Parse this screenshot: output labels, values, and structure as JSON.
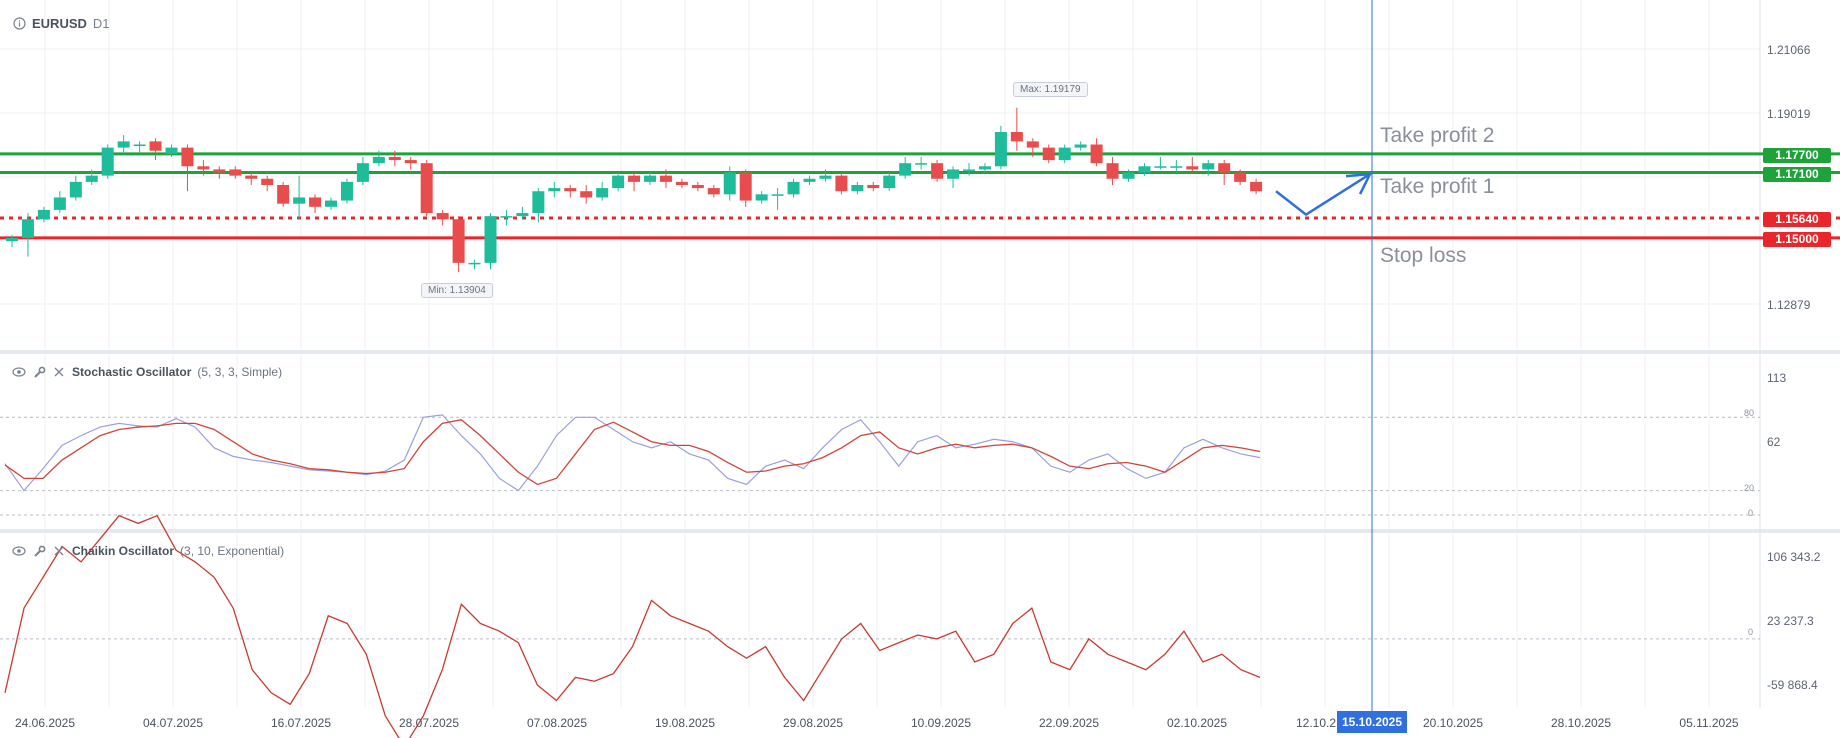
{
  "header": {
    "symbol": "EURUSD",
    "timeframe": "D1"
  },
  "price_axis": [
    "1.21066",
    "1.19019",
    "1.12879"
  ],
  "level_labels": [
    {
      "text": "1.17700",
      "color": "#1fa23a"
    },
    {
      "text": "1.17100",
      "color": "#1fa23a"
    },
    {
      "text": "1.15640",
      "color": "#e8262b"
    },
    {
      "text": "1.15000",
      "color": "#e8262b"
    }
  ],
  "annotations": {
    "tp2": "Take profit 2",
    "tp1": "Take profit 1",
    "sl": "Stop loss"
  },
  "markers": {
    "max": "Max: 1.19179",
    "min": "Min: 1.13904"
  },
  "stochastic": {
    "name": "Stochastic Oscillator",
    "params": "(5, 3, 3, Simple)",
    "axis": [
      "113",
      "62"
    ],
    "levels": [
      "80",
      "20",
      "0"
    ]
  },
  "chaikin": {
    "name": "Chaikin Oscillator",
    "params": "(3, 10, Exponential)",
    "axis": [
      "106 343.2",
      "23 237.3",
      "-59 868.4"
    ],
    "zero": "0"
  },
  "time_axis": [
    "24.06.2025",
    "04.07.2025",
    "16.07.2025",
    "28.07.2025",
    "07.08.2025",
    "19.08.2025",
    "29.08.2025",
    "10.09.2025",
    "22.09.2025",
    "02.10.2025",
    "12.10.2",
    "20.10.2025",
    "28.10.2025",
    "05.11.2025"
  ],
  "current_date": "15.10.2025",
  "colors": {
    "up": "#1ebc9a",
    "down": "#e84c4c",
    "tp": "#1fa23a",
    "sl": "#e8262b",
    "cursor": "#2f6fe0"
  },
  "chart_data": {
    "type": "candlestick",
    "symbol": "EURUSD",
    "timeframe": "D1",
    "levels": {
      "take_profit_2": 1.177,
      "take_profit_1": 1.171,
      "entry": 1.1564,
      "stop_loss": 1.15
    },
    "max": 1.19179,
    "min": 1.13904,
    "candles": [
      [
        1.149,
        1.15,
        1.147,
        1.151
      ],
      [
        1.15,
        1.156,
        1.144,
        1.158
      ],
      [
        1.156,
        1.159,
        1.155,
        1.16
      ],
      [
        1.159,
        1.163,
        1.158,
        1.165
      ],
      [
        1.163,
        1.168,
        1.162,
        1.17
      ],
      [
        1.168,
        1.17,
        1.167,
        1.172
      ],
      [
        1.17,
        1.179,
        1.169,
        1.18
      ],
      [
        1.179,
        1.181,
        1.177,
        1.183
      ],
      [
        1.18,
        1.18,
        1.177,
        1.181
      ],
      [
        1.181,
        1.178,
        1.175,
        1.182
      ],
      [
        1.177,
        1.179,
        1.176,
        1.18
      ],
      [
        1.179,
        1.173,
        1.165,
        1.18
      ],
      [
        1.173,
        1.172,
        1.17,
        1.175
      ],
      [
        1.172,
        1.171,
        1.169,
        1.173
      ],
      [
        1.172,
        1.17,
        1.169,
        1.173
      ],
      [
        1.17,
        1.169,
        1.167,
        1.171
      ],
      [
        1.169,
        1.167,
        1.165,
        1.17
      ],
      [
        1.167,
        1.161,
        1.16,
        1.168
      ],
      [
        1.161,
        1.163,
        1.156,
        1.17
      ],
      [
        1.163,
        1.16,
        1.158,
        1.164
      ],
      [
        1.16,
        1.162,
        1.159,
        1.163
      ],
      [
        1.162,
        1.168,
        1.161,
        1.169
      ],
      [
        1.168,
        1.174,
        1.167,
        1.176
      ],
      [
        1.174,
        1.176,
        1.173,
        1.178
      ],
      [
        1.176,
        1.175,
        1.173,
        1.178
      ],
      [
        1.175,
        1.174,
        1.172,
        1.176
      ],
      [
        1.174,
        1.158,
        1.157,
        1.175
      ],
      [
        1.158,
        1.156,
        1.154,
        1.159
      ],
      [
        1.156,
        1.142,
        1.139,
        1.157
      ],
      [
        1.142,
        1.142,
        1.14,
        1.143
      ],
      [
        1.142,
        1.157,
        1.14,
        1.158
      ],
      [
        1.157,
        1.157,
        1.154,
        1.159
      ],
      [
        1.157,
        1.158,
        1.156,
        1.16
      ],
      [
        1.158,
        1.165,
        1.155,
        1.166
      ],
      [
        1.165,
        1.166,
        1.163,
        1.168
      ],
      [
        1.166,
        1.165,
        1.163,
        1.167
      ],
      [
        1.165,
        1.163,
        1.161,
        1.167
      ],
      [
        1.163,
        1.166,
        1.162,
        1.168
      ],
      [
        1.166,
        1.17,
        1.165,
        1.171
      ],
      [
        1.17,
        1.168,
        1.165,
        1.171
      ],
      [
        1.168,
        1.17,
        1.167,
        1.171
      ],
      [
        1.17,
        1.168,
        1.166,
        1.172
      ],
      [
        1.168,
        1.167,
        1.166,
        1.169
      ],
      [
        1.167,
        1.166,
        1.165,
        1.168
      ],
      [
        1.166,
        1.164,
        1.163,
        1.167
      ],
      [
        1.164,
        1.171,
        1.162,
        1.173
      ],
      [
        1.171,
        1.162,
        1.16,
        1.172
      ],
      [
        1.162,
        1.164,
        1.161,
        1.165
      ],
      [
        1.164,
        1.164,
        1.159,
        1.166
      ],
      [
        1.164,
        1.168,
        1.163,
        1.169
      ],
      [
        1.168,
        1.169,
        1.167,
        1.17
      ],
      [
        1.169,
        1.17,
        1.168,
        1.172
      ],
      [
        1.17,
        1.165,
        1.164,
        1.171
      ],
      [
        1.165,
        1.167,
        1.164,
        1.168
      ],
      [
        1.167,
        1.166,
        1.165,
        1.168
      ],
      [
        1.166,
        1.17,
        1.165,
        1.171
      ],
      [
        1.17,
        1.174,
        1.169,
        1.176
      ],
      [
        1.174,
        1.174,
        1.172,
        1.176
      ],
      [
        1.174,
        1.169,
        1.168,
        1.175
      ],
      [
        1.169,
        1.172,
        1.166,
        1.173
      ],
      [
        1.172,
        1.172,
        1.17,
        1.174
      ],
      [
        1.172,
        1.173,
        1.171,
        1.174
      ],
      [
        1.173,
        1.184,
        1.172,
        1.186
      ],
      [
        1.184,
        1.181,
        1.178,
        1.1918
      ],
      [
        1.181,
        1.179,
        1.176,
        1.182
      ],
      [
        1.179,
        1.175,
        1.174,
        1.18
      ],
      [
        1.175,
        1.179,
        1.174,
        1.18
      ],
      [
        1.179,
        1.18,
        1.178,
        1.181
      ],
      [
        1.18,
        1.174,
        1.173,
        1.182
      ],
      [
        1.174,
        1.169,
        1.167,
        1.176
      ],
      [
        1.169,
        1.171,
        1.168,
        1.172
      ],
      [
        1.171,
        1.173,
        1.17,
        1.174
      ],
      [
        1.173,
        1.173,
        1.172,
        1.176
      ],
      [
        1.173,
        1.173,
        1.171,
        1.175
      ],
      [
        1.173,
        1.172,
        1.171,
        1.176
      ],
      [
        1.172,
        1.174,
        1.17,
        1.175
      ],
      [
        1.174,
        1.171,
        1.167,
        1.175
      ],
      [
        1.171,
        1.168,
        1.167,
        1.172
      ],
      [
        1.168,
        1.165,
        1.164,
        1.169
      ]
    ],
    "projection": [
      1.165,
      1.1575,
      1.1705
    ],
    "stochastic_k": [
      42,
      20,
      38,
      57,
      65,
      72,
      75,
      73,
      72,
      79,
      72,
      55,
      48,
      45,
      43,
      40,
      37,
      36,
      35,
      33,
      36,
      45,
      80,
      82,
      65,
      50,
      30,
      20,
      40,
      65,
      80,
      80,
      70,
      60,
      55,
      60,
      50,
      45,
      30,
      25,
      40,
      45,
      38,
      55,
      70,
      78,
      60,
      40,
      60,
      65,
      55,
      58,
      62,
      60,
      55,
      40,
      35,
      45,
      50,
      38,
      30,
      35,
      55,
      62,
      55,
      50,
      47
    ],
    "stochastic_d": [
      41,
      30,
      30,
      45,
      55,
      65,
      70,
      72,
      73,
      75,
      75,
      70,
      60,
      50,
      45,
      42,
      38,
      37,
      35,
      34,
      35,
      38,
      60,
      75,
      78,
      65,
      50,
      35,
      25,
      30,
      50,
      70,
      76,
      68,
      60,
      57,
      57,
      52,
      43,
      35,
      36,
      40,
      42,
      47,
      55,
      65,
      68,
      55,
      50,
      55,
      58,
      55,
      57,
      58,
      55,
      48,
      40,
      38,
      42,
      43,
      40,
      35,
      45,
      55,
      57,
      55,
      52
    ],
    "stochastic_levels": [
      80,
      20,
      0
    ],
    "chaikin": [
      -70000,
      40000,
      80000,
      120000,
      100000,
      130000,
      160000,
      150000,
      160000,
      115000,
      100000,
      80000,
      40000,
      -40000,
      -70000,
      -85000,
      -45000,
      30000,
      20000,
      -20000,
      -100000,
      -140000,
      -100000,
      -40000,
      45000,
      20000,
      10000,
      -5000,
      -60000,
      -80000,
      -50000,
      -55000,
      -45000,
      -10000,
      50000,
      30000,
      20000,
      10000,
      -10000,
      -25000,
      -10000,
      -50000,
      -80000,
      -40000,
      0,
      20000,
      -15000,
      -5000,
      5000,
      0,
      10000,
      -30000,
      -20000,
      20000,
      40000,
      -30000,
      -40000,
      0,
      -20000,
      -30000,
      -40000,
      -20000,
      10000,
      -30000,
      -20000,
      -40000,
      -50000
    ],
    "chaikin_axis": [
      106343.2,
      23237.3,
      -59868.4
    ]
  }
}
